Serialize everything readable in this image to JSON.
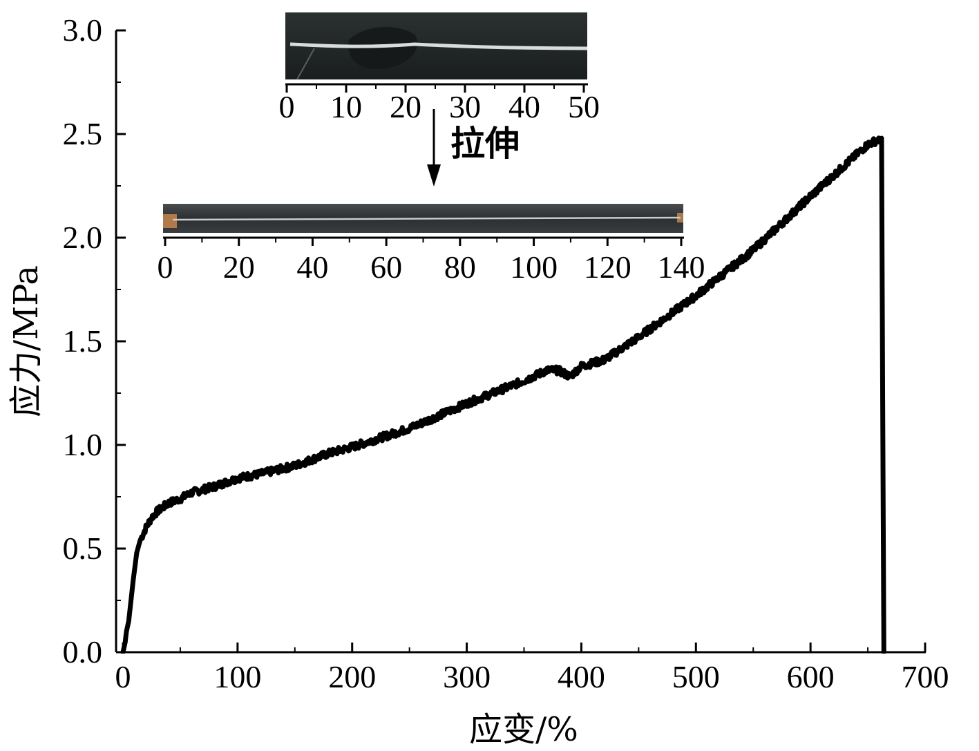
{
  "chart_data": {
    "type": "line",
    "xlabel": "应变/%",
    "ylabel": "应力/MPa",
    "xlim": [
      0,
      700
    ],
    "ylim": [
      0,
      3.0
    ],
    "x_ticks": [
      "0",
      "100",
      "200",
      "300",
      "400",
      "500",
      "600",
      "700"
    ],
    "y_ticks": [
      "0.0",
      "0.5",
      "1.0",
      "1.5",
      "2.0",
      "2.5",
      "3.0"
    ],
    "grid": false,
    "legend": "none",
    "series": [
      {
        "color": "#000000",
        "x": [
          0,
          2,
          3,
          5,
          7,
          9,
          12,
          15,
          20,
          25,
          30,
          40,
          50,
          60,
          80,
          100,
          120,
          150,
          180,
          200,
          250,
          300,
          350,
          370,
          380,
          390,
          400,
          420,
          450,
          500,
          550,
          600,
          650,
          662,
          663,
          664
        ],
        "y": [
          0.0,
          0.05,
          0.1,
          0.15,
          0.25,
          0.35,
          0.48,
          0.54,
          0.6,
          0.65,
          0.68,
          0.72,
          0.74,
          0.77,
          0.8,
          0.84,
          0.86,
          0.9,
          0.96,
          0.99,
          1.08,
          1.2,
          1.31,
          1.36,
          1.36,
          1.33,
          1.38,
          1.41,
          1.52,
          1.72,
          1.94,
          2.2,
          2.45,
          2.48,
          1.2,
          0.0
        ]
      }
    ],
    "insets": [
      {
        "name": "before",
        "unit_ticks": [
          "0",
          "10",
          "20",
          "30",
          "40",
          "50"
        ]
      },
      {
        "name": "after",
        "unit_ticks": [
          "0",
          "20",
          "40",
          "60",
          "80",
          "100",
          "120",
          "140"
        ]
      }
    ],
    "annotation": "拉伸"
  }
}
